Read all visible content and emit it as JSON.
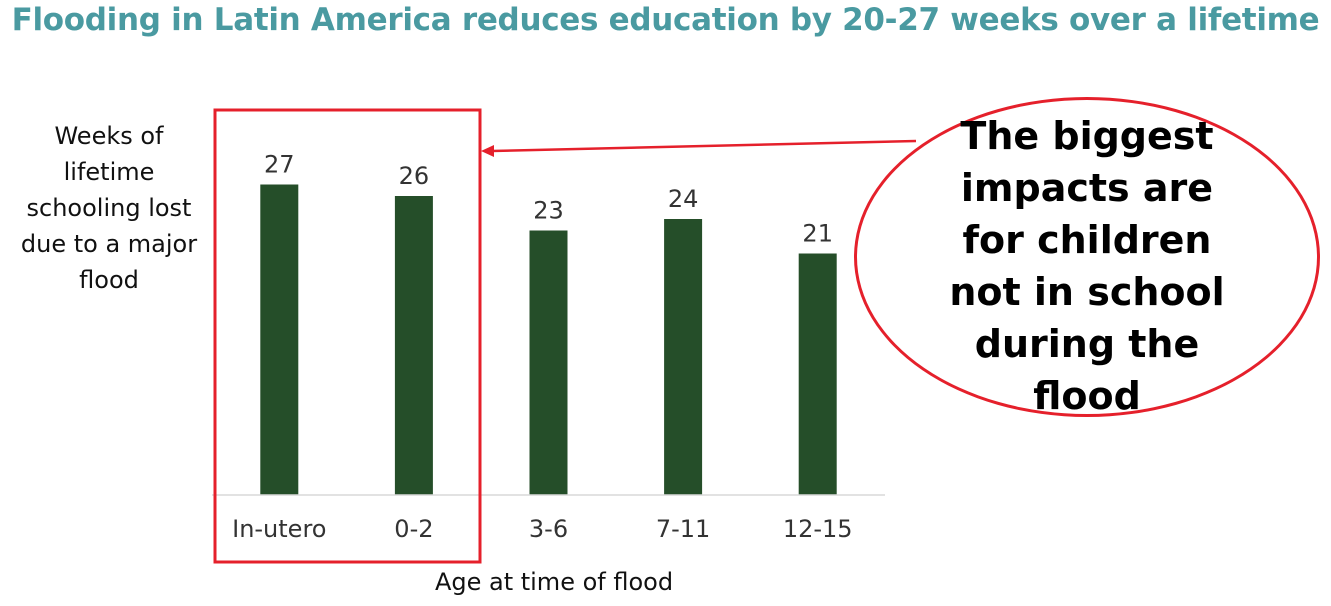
{
  "colors": {
    "title": "#4a9aa1",
    "bar": "#254e29",
    "highlight": "#e5202b",
    "axis": "#d9d9d9",
    "text": "#333333"
  },
  "callout": {
    "lines": [
      "The biggest",
      "impacts are",
      "for children",
      "not in school",
      "during the",
      "flood"
    ]
  },
  "chart_data": {
    "type": "bar",
    "title": "Flooding in Latin America reduces education by 20-27 weeks over a lifetime",
    "ylabel_lines": [
      "Weeks of",
      "lifetime",
      "schooling lost",
      "due to a major",
      "flood"
    ],
    "xlabel": "Age at time of flood",
    "categories": [
      "In-utero",
      "0-2",
      "3-6",
      "7-11",
      "12-15"
    ],
    "values": [
      27,
      26,
      23,
      24,
      21
    ],
    "ylim": [
      0,
      30
    ],
    "grid": false,
    "data_labels": true,
    "highlighted_categories": [
      "In-utero",
      "0-2"
    ]
  }
}
